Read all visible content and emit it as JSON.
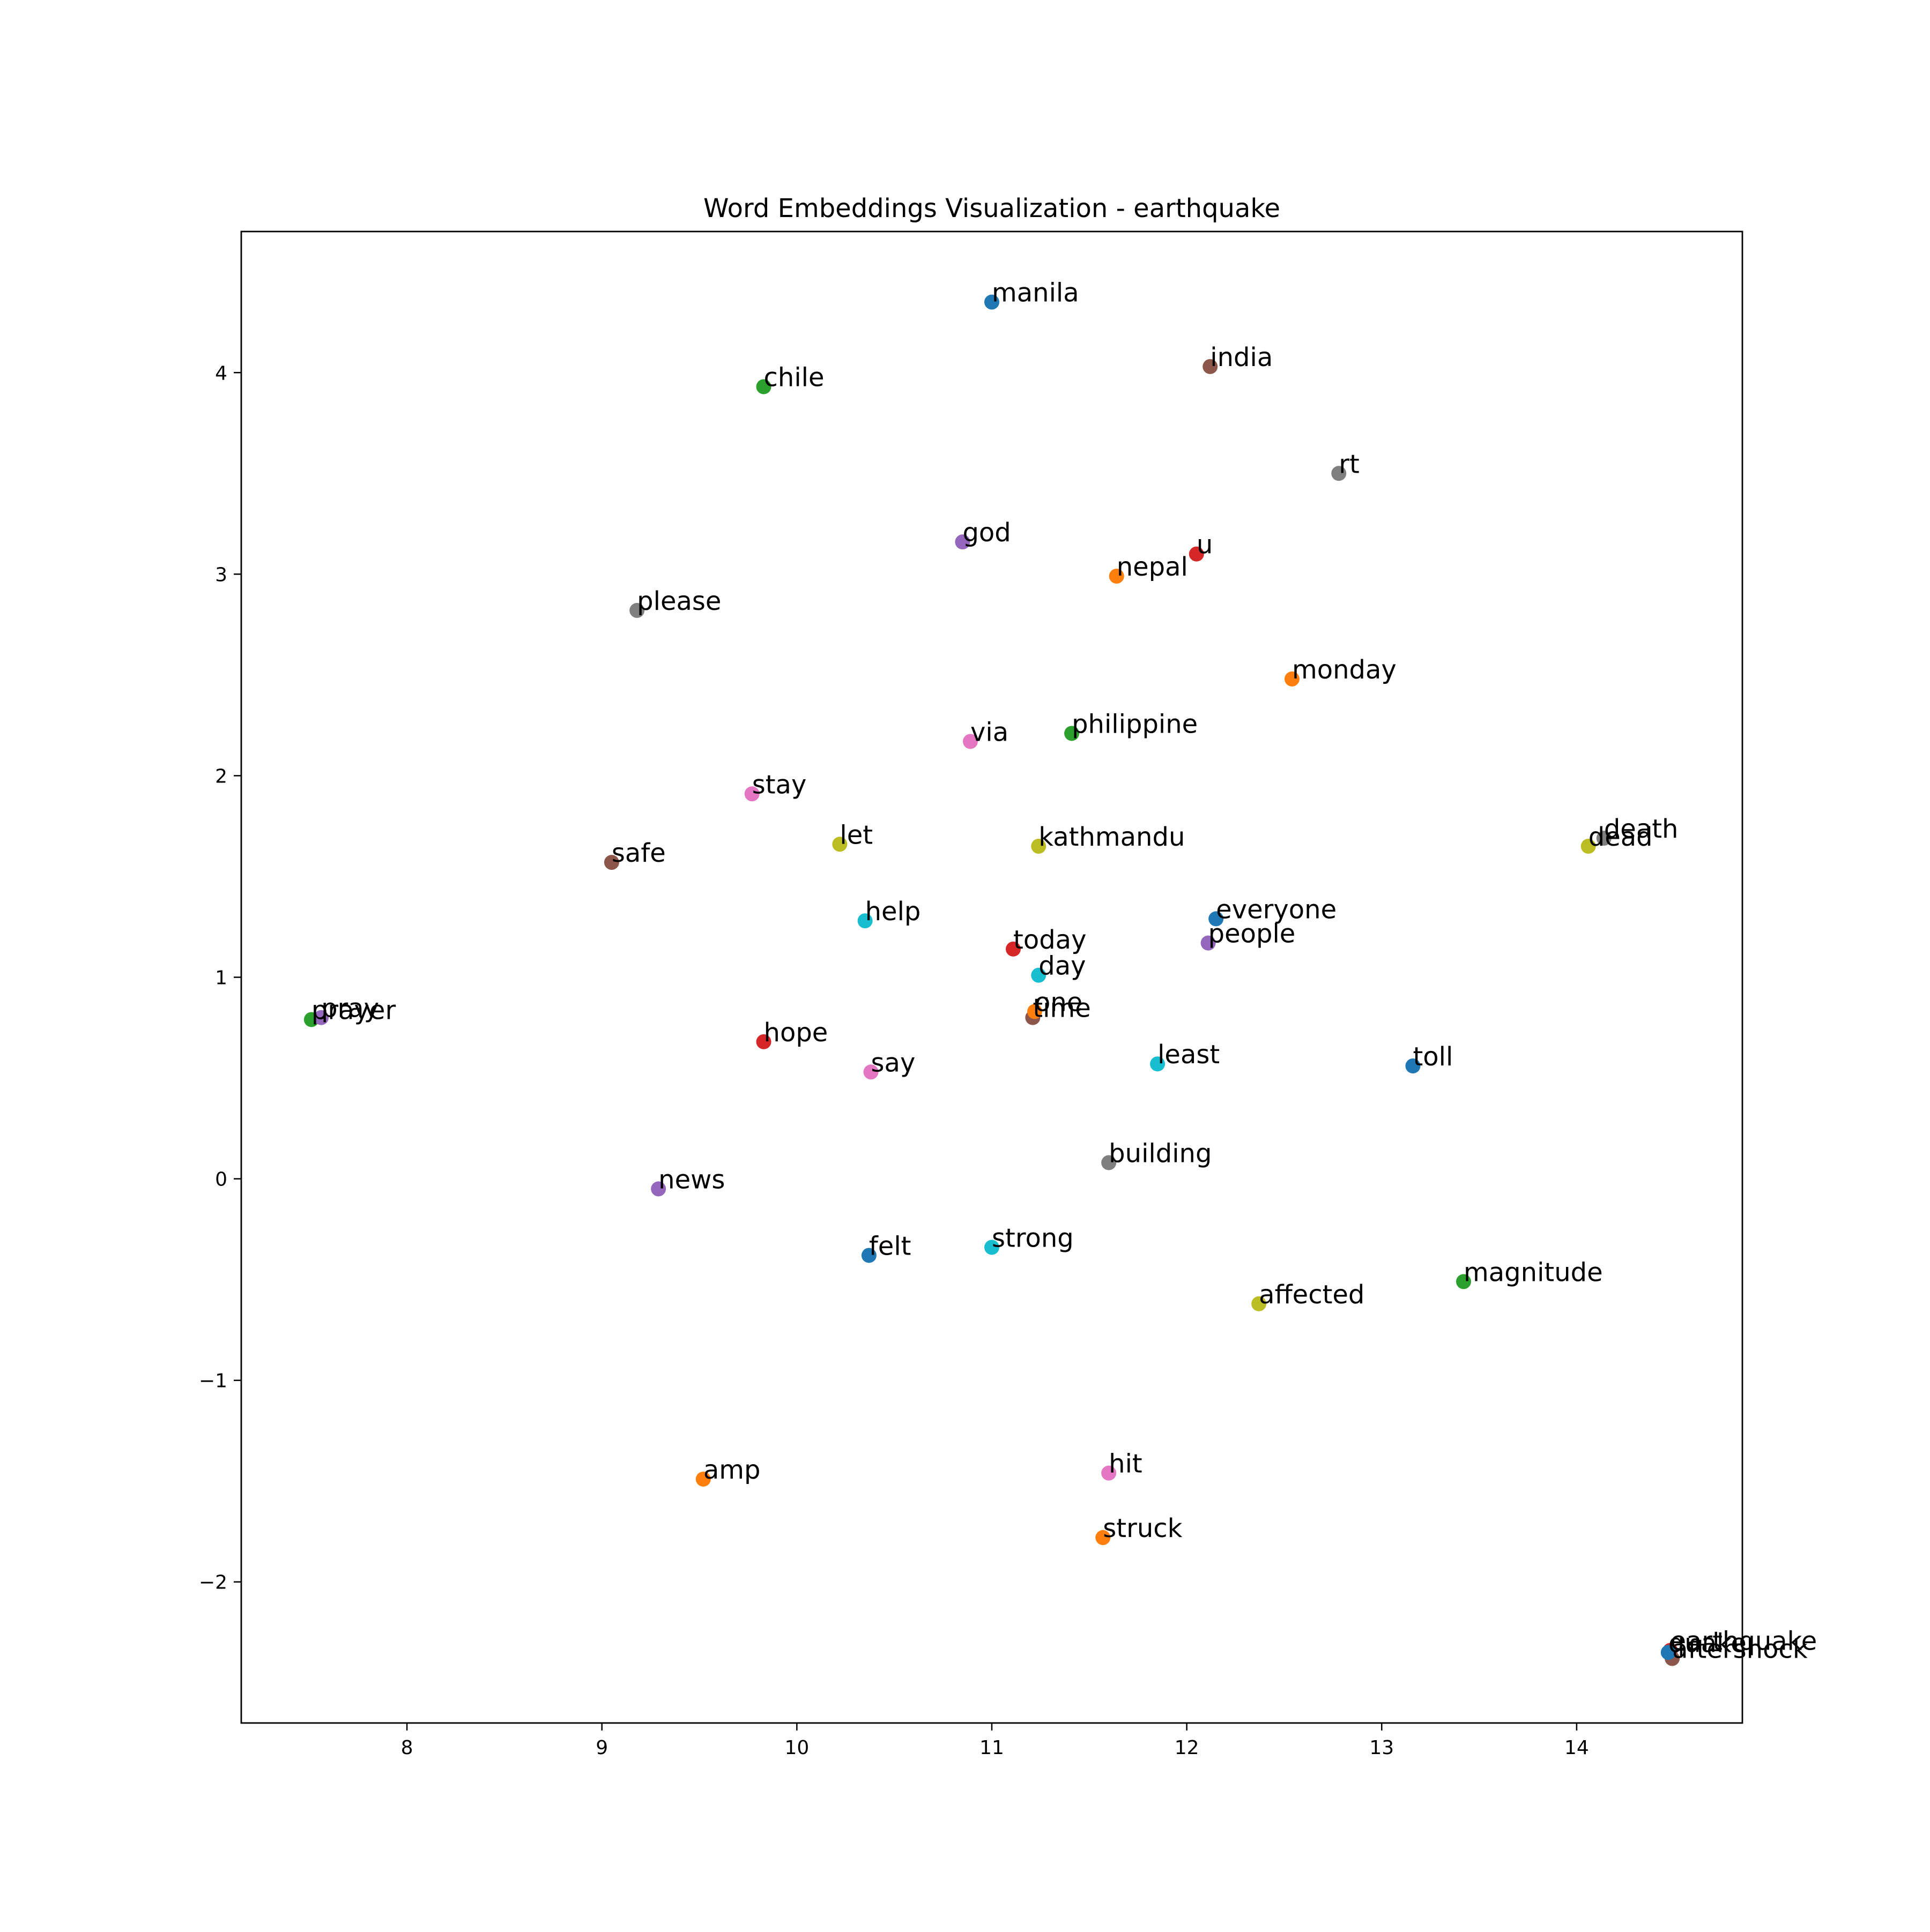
{
  "chart_data": {
    "type": "scatter",
    "title": "Word Embeddings Visualization - earthquake",
    "xlabel": "",
    "ylabel": "",
    "xlim": [
      7.15,
      14.85
    ],
    "ylim": [
      -2.7,
      4.7
    ],
    "xticks": [
      8,
      9,
      10,
      11,
      12,
      13,
      14
    ],
    "yticks": [
      -2,
      -1,
      0,
      1,
      2,
      3,
      4
    ],
    "grid": false,
    "legend": "none",
    "palette": [
      "#1f77b4",
      "#ff7f0e",
      "#2ca02c",
      "#d62728",
      "#9467bd",
      "#8c564b",
      "#e377c2",
      "#7f7f7f",
      "#bcbd22",
      "#17becf"
    ],
    "points": [
      {
        "label": "manila",
        "x": 11.0,
        "y": 4.35
      },
      {
        "label": "nepal",
        "x": 11.64,
        "y": 2.99
      },
      {
        "label": "philippine",
        "x": 11.41,
        "y": 2.21
      },
      {
        "label": "u",
        "x": 12.05,
        "y": 3.1
      },
      {
        "label": "god",
        "x": 10.85,
        "y": 3.16
      },
      {
        "label": "india",
        "x": 12.12,
        "y": 4.03
      },
      {
        "label": "via",
        "x": 10.89,
        "y": 2.17
      },
      {
        "label": "rt",
        "x": 12.78,
        "y": 3.5
      },
      {
        "label": "kathmandu",
        "x": 11.24,
        "y": 1.65
      },
      {
        "label": "help",
        "x": 10.35,
        "y": 1.28
      },
      {
        "label": "everyone",
        "x": 12.15,
        "y": 1.29
      },
      {
        "label": "monday",
        "x": 12.54,
        "y": 2.48
      },
      {
        "label": "chile",
        "x": 9.83,
        "y": 3.93
      },
      {
        "label": "today",
        "x": 11.11,
        "y": 1.14
      },
      {
        "label": "people",
        "x": 12.11,
        "y": 1.17
      },
      {
        "label": "time",
        "x": 11.21,
        "y": 0.8
      },
      {
        "label": "stay",
        "x": 9.77,
        "y": 1.91
      },
      {
        "label": "please",
        "x": 9.18,
        "y": 2.82
      },
      {
        "label": "dead",
        "x": 14.06,
        "y": 1.65
      },
      {
        "label": "day",
        "x": 11.24,
        "y": 1.01
      },
      {
        "label": "toll",
        "x": 13.16,
        "y": 0.56
      },
      {
        "label": "one",
        "x": 11.22,
        "y": 0.83
      },
      {
        "label": "prayer",
        "x": 7.51,
        "y": 0.79
      },
      {
        "label": "earthquake",
        "x": 14.48,
        "y": -2.34
      },
      {
        "label": "pray",
        "x": 7.56,
        "y": 0.8
      },
      {
        "label": "safe",
        "x": 9.05,
        "y": 1.57
      },
      {
        "label": "hit",
        "x": 11.6,
        "y": -1.46
      },
      {
        "label": "death",
        "x": 14.14,
        "y": 1.69
      },
      {
        "label": "let",
        "x": 10.22,
        "y": 1.66
      },
      {
        "label": "least",
        "x": 11.85,
        "y": 0.57
      },
      {
        "label": "felt",
        "x": 10.37,
        "y": -0.38
      },
      {
        "label": "struck",
        "x": 11.57,
        "y": -1.78
      },
      {
        "label": "magnitude",
        "x": 13.42,
        "y": -0.51
      },
      {
        "label": "hope",
        "x": 9.83,
        "y": 0.68
      },
      {
        "label": "news",
        "x": 9.29,
        "y": -0.05
      },
      {
        "label": "aftershock",
        "x": 14.49,
        "y": -2.38
      },
      {
        "label": "say",
        "x": 10.38,
        "y": 0.53
      },
      {
        "label": "building",
        "x": 11.6,
        "y": 0.08
      },
      {
        "label": "affected",
        "x": 12.37,
        "y": -0.62
      },
      {
        "label": "strong",
        "x": 11.0,
        "y": -0.34
      },
      {
        "label": "quake",
        "x": 14.47,
        "y": -2.35
      },
      {
        "label": "amp",
        "x": 9.52,
        "y": -1.49
      }
    ]
  }
}
